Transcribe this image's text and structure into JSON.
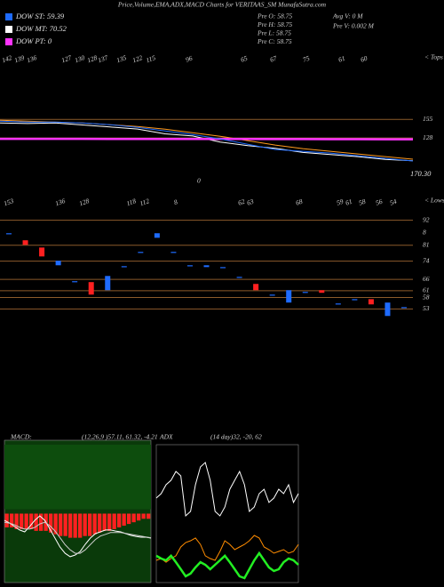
{
  "header": {
    "title": "Price,Volume,EMA,ADX,MACD Charts for VERITAAS_SM MunafaSutra.com",
    "legend": [
      {
        "label": "DOW ST: 59.39",
        "color": "#1e6bff"
      },
      {
        "label": "DOW MT: 70.52",
        "color": "#ffffff"
      },
      {
        "label": "DOW PT: 0",
        "color": "#ff33ff"
      }
    ],
    "info_left": [
      "Pre  O: 58.75",
      "Pre  H: 58.75",
      "Pre  L: 58.75",
      "Pre  C: 58.75"
    ],
    "info_right": [
      "Avg V: 0  M",
      "Pre  V: 0.002  M"
    ]
  },
  "chart_data": [
    {
      "type": "line",
      "tops": [
        "142",
        "139",
        "136",
        "127",
        "130",
        "128",
        "137",
        "135",
        "122",
        "115",
        "96",
        "65",
        "67",
        "75",
        "61",
        "60"
      ],
      "tops_label": "< Tops",
      "last_price": "170.30",
      "mid_label": "0",
      "categories": [
        null,
        null,
        null,
        null,
        null,
        null,
        null,
        null,
        null,
        null,
        null,
        null,
        null,
        null,
        null,
        null
      ],
      "ylim": [
        83,
        167
      ],
      "yticks": [
        128,
        155
      ],
      "grid": true,
      "grid_color": "#8b5a2b",
      "series": [
        {
          "color": "#ff9a1f",
          "values": [
            153.7,
            152.4,
            151.1,
            149.9,
            147.3,
            144.7,
            140.9,
            135.7,
            130.6,
            124.2,
            117.7,
            112.6,
            108.7,
            104.9,
            101.0,
            97.2
          ]
        },
        {
          "color": "#ffffff",
          "values": [
            150,
            149,
            150,
            147,
            144,
            141,
            134,
            131,
            122,
            117,
            113,
            107,
            104,
            101,
            97,
            95
          ]
        },
        {
          "color": "#ff33ff",
          "values": [
            126.8,
            126.8,
            126.8,
            126.8,
            126.7,
            126.7,
            126.6,
            126.6,
            126.5,
            126.5,
            126.4,
            126.4,
            126.3,
            126.3,
            126.2,
            126.2
          ]
        },
        {
          "color": "#1e6bff",
          "values": [
            152.4,
            151.1,
            151.1,
            149.9,
            147.3,
            143.4,
            138.3,
            133.2,
            126.7,
            118.9,
            111.3,
            108.7,
            106.1,
            102.3,
            98.4,
            94.6
          ]
        }
      ]
    },
    {
      "type": "candlestick",
      "lows": [
        "153",
        "136",
        "128",
        "118",
        "112",
        "8",
        "62",
        "63",
        "68",
        "59",
        "61",
        "58",
        "56",
        "54"
      ],
      "lows_label": "< Lows",
      "extra_label": "8",
      "categories": [
        null,
        null,
        null,
        null,
        null,
        null,
        null,
        null,
        null,
        null,
        null,
        null,
        null,
        null,
        null,
        null,
        null,
        null,
        null,
        null,
        null,
        null,
        null,
        null,
        null
      ],
      "open": [
        86.1,
        83.0,
        79.8,
        72.0,
        65.0,
        64.6,
        61.05,
        71.6,
        77.9,
        84.1,
        77.9,
        72.0,
        71.2,
        71.2,
        66.9,
        63.8,
        59.1,
        55.6,
        60.3,
        61.05,
        55.2,
        57.1,
        57.1,
        49.7,
        53.6
      ],
      "close": [
        86.1,
        81.0,
        75.9,
        74.0,
        65.0,
        59.1,
        67.3,
        71.6,
        77.9,
        86.1,
        77.9,
        72.0,
        72.0,
        71.2,
        66.9,
        61.05,
        59.1,
        61.05,
        60.3,
        59.9,
        55.2,
        57.1,
        54.8,
        55.6,
        53.6
      ],
      "up_color": "#1e6bff",
      "down_color": "#ff2020",
      "ylim": [
        50,
        95
      ],
      "yticks": [
        92,
        81,
        74,
        66,
        61,
        58,
        53
      ],
      "grid": true,
      "grid_color": "#8b5a2b"
    },
    {
      "type": "bar",
      "label": "MACD:",
      "params": "(12,26,9 )57.11, 61.32, -4.21",
      "categories": [
        null,
        null,
        null,
        null,
        null,
        null,
        null,
        null,
        null,
        null,
        null,
        null,
        null,
        null,
        null,
        null,
        null,
        null,
        null,
        null,
        null,
        null,
        null,
        null,
        null,
        null,
        null,
        null,
        null,
        null
      ],
      "values": [
        -8,
        -8,
        -9,
        -9,
        -9,
        -9,
        -10,
        -10,
        -10,
        -11,
        -12,
        -13,
        -13,
        -14,
        -14,
        -14,
        -13,
        -13,
        -12,
        -11,
        -10,
        -10,
        -9,
        -8,
        -7,
        -6,
        -5,
        -4,
        -3,
        -3
      ],
      "color": "#ff2020",
      "ylim": [
        -40,
        40
      ],
      "series": [
        {
          "color": "#ffffff",
          "values": [
            -3.9,
            -5.4,
            -7.5,
            -9.5,
            -10.6,
            -7.5,
            -3.9,
            -1.3,
            -3.9,
            -9.0,
            -14.2,
            -19.4,
            -23.0,
            -25.0,
            -24.0,
            -22.0,
            -17.8,
            -14.2,
            -11.6,
            -10.6,
            -9.5,
            -9.5,
            -10.1,
            -10.6,
            -11.6,
            -12.6,
            -13.2,
            -13.7,
            -13.7,
            -14.2
          ]
        },
        {
          "color": "#cccccc",
          "values": [
            -5,
            -5.5,
            -6.5,
            -8,
            -9,
            -9,
            -8,
            -6,
            -5,
            -7,
            -10,
            -14,
            -18,
            -21,
            -23,
            -23,
            -21,
            -18,
            -15,
            -13,
            -12,
            -11,
            -11,
            -11,
            -11.5,
            -12,
            -12.5,
            -13,
            -13.5,
            -14
          ]
        }
      ]
    },
    {
      "type": "line",
      "label": "ADX",
      "params": "(14 day)32, -20, 62",
      "categories": [
        null,
        null,
        null,
        null,
        null,
        null,
        null,
        null,
        null,
        null,
        null,
        null,
        null,
        null,
        null,
        null,
        null,
        null,
        null,
        null,
        null,
        null,
        null,
        null,
        null,
        null,
        null,
        null,
        null,
        null
      ],
      "ylim": [
        0,
        100
      ],
      "series": [
        {
          "color": "#ffffff",
          "values": [
            61.3,
            64.5,
            71,
            74.2,
            80.6,
            77.4,
            48.4,
            51.6,
            71,
            83.9,
            87.1,
            74.2,
            51.6,
            48.4,
            54.8,
            67.7,
            74.2,
            80.6,
            71,
            51.6,
            54.8,
            64.5,
            67.7,
            58.1,
            61.3,
            67.7,
            64.5,
            71,
            58.1,
            64.5
          ]
        },
        {
          "color": "#ff8c00",
          "values": [
            16.1,
            17.4,
            14.8,
            17.4,
            19.4,
            25.8,
            29,
            30.3,
            32.3,
            27.7,
            19.4,
            17.4,
            16.1,
            22.6,
            30.3,
            27.7,
            23.9,
            25.8,
            27.7,
            30.3,
            34.2,
            32.3,
            25.8,
            23.9,
            21.3,
            22.6,
            23.9,
            21.3,
            22.6,
            27.7
          ]
        },
        {
          "color": "#22ee22",
          "values": [
            19.4,
            17.4,
            16.1,
            19.4,
            14.8,
            9.7,
            4.5,
            6.5,
            11,
            14.8,
            12.9,
            9.7,
            12.9,
            16.1,
            19.4,
            14.8,
            9.7,
            4.5,
            3.2,
            9.7,
            16.1,
            21.3,
            16.1,
            11,
            8.4,
            9.7,
            14.8,
            17.4,
            16.1,
            12.9
          ]
        }
      ]
    }
  ]
}
